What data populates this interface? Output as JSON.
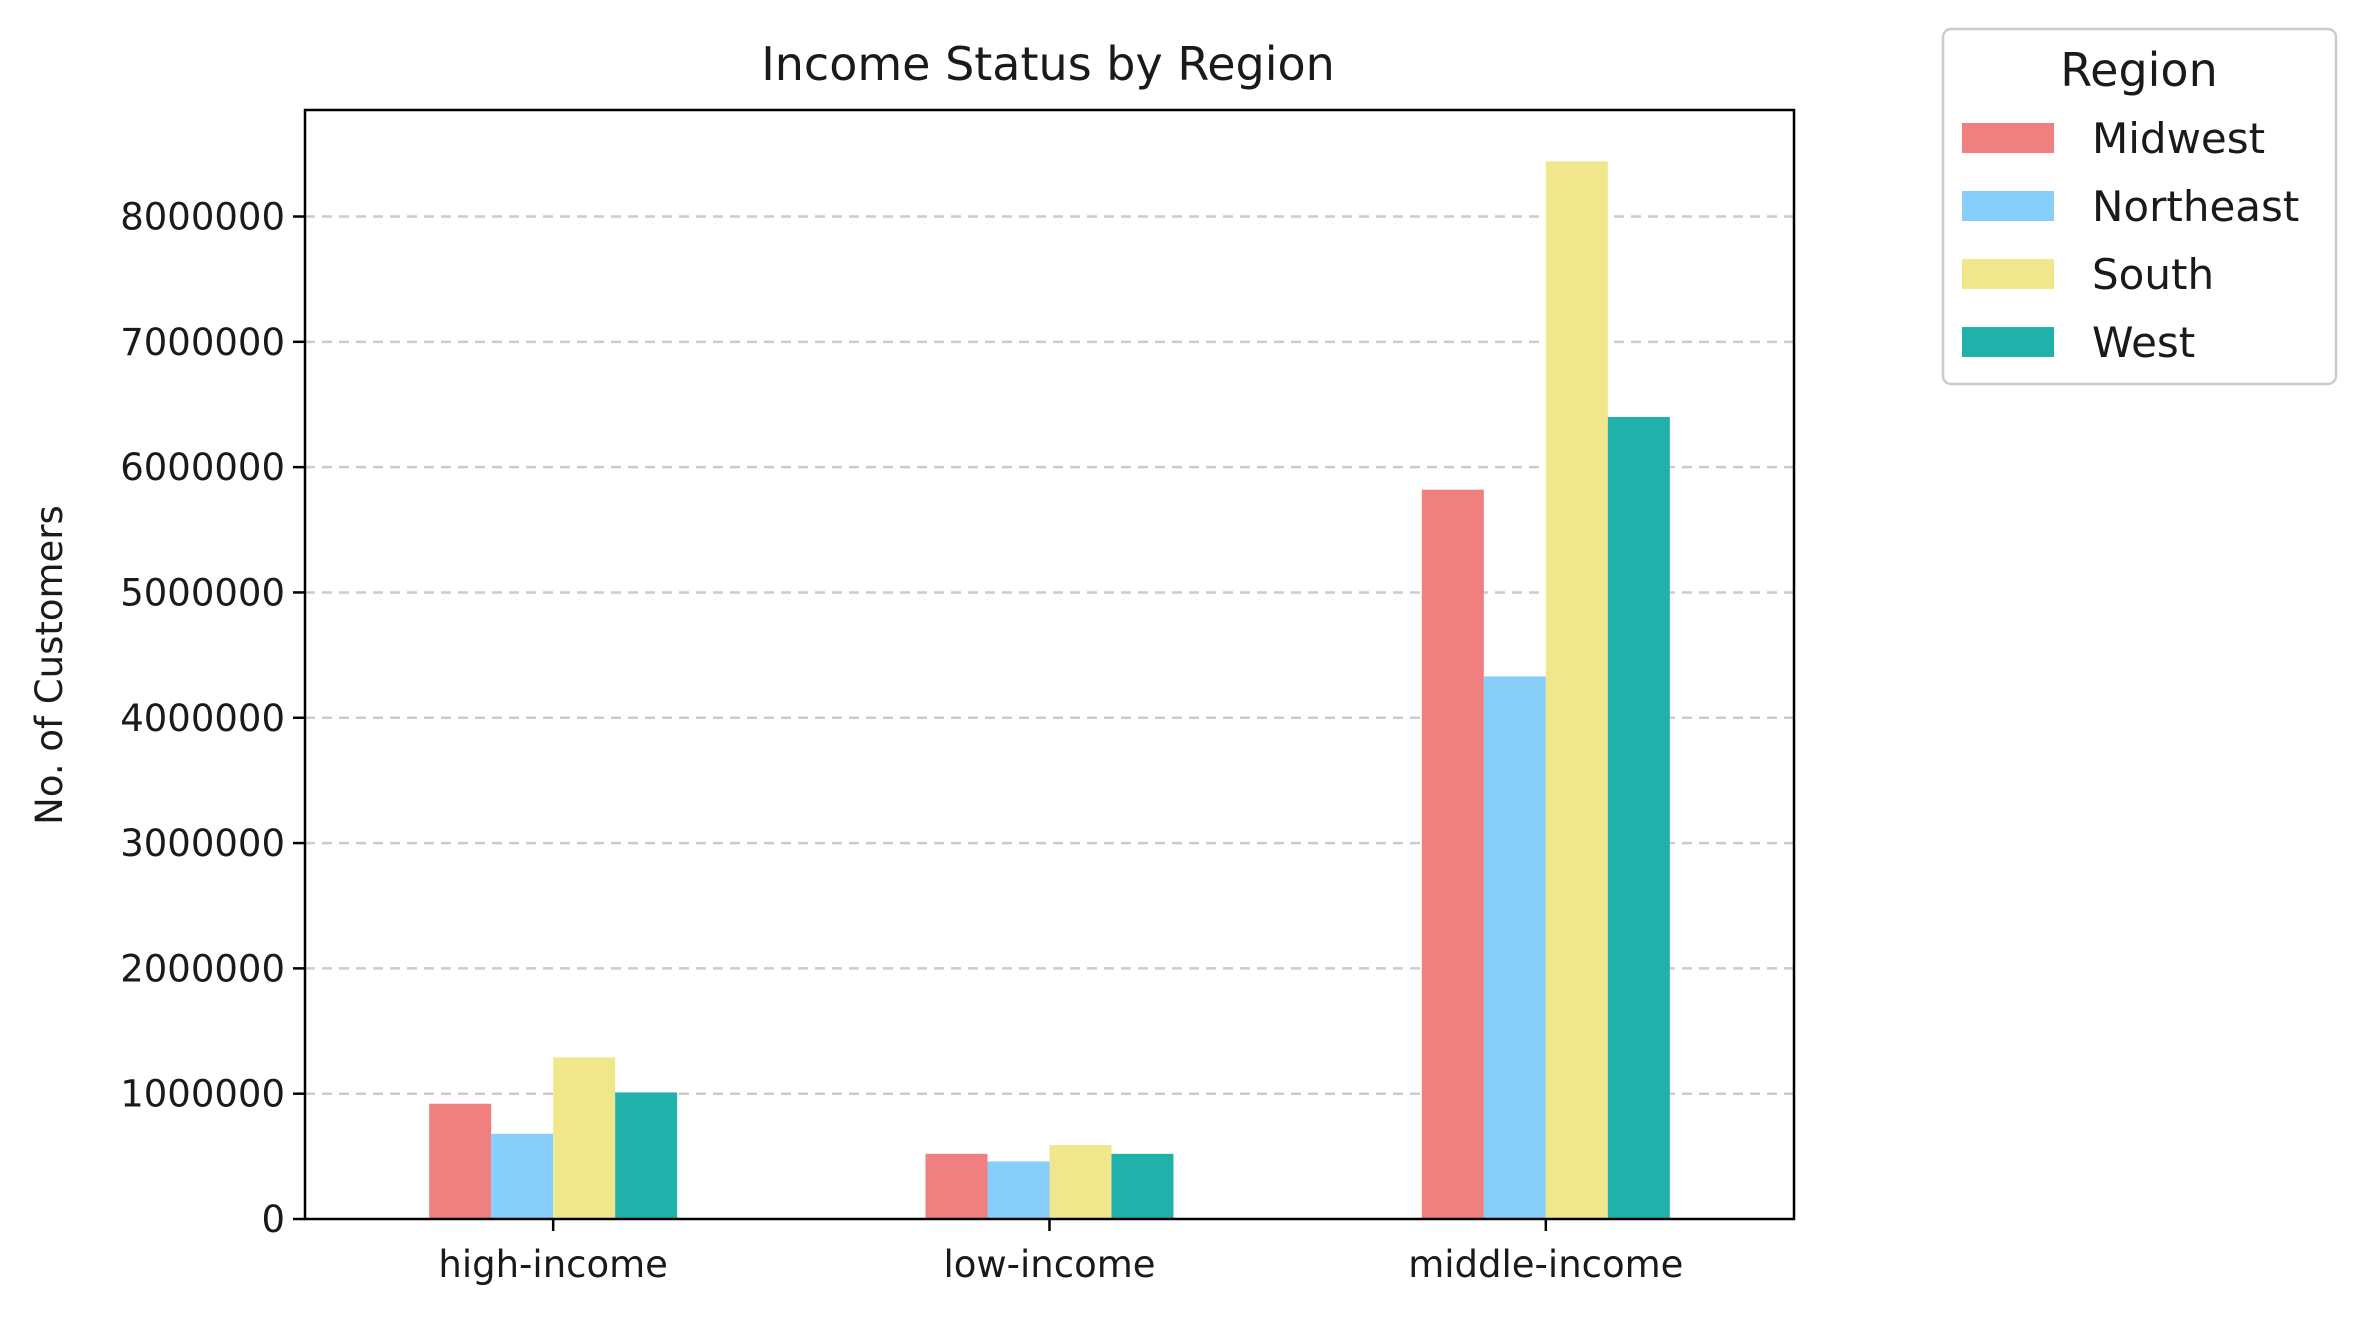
{
  "chart_data": {
    "type": "bar",
    "title": "Income Status by Region",
    "xlabel": "",
    "ylabel": "No. of Customers",
    "categories": [
      "high-income",
      "low-income",
      "middle-income"
    ],
    "series": [
      {
        "name": "Midwest",
        "color": "#F08080",
        "values": [
          920000,
          520000,
          5820000
        ]
      },
      {
        "name": "Northeast",
        "color": "#87CEFA",
        "values": [
          680000,
          460000,
          4330000
        ]
      },
      {
        "name": "South",
        "color": "#F0E68C",
        "values": [
          1290000,
          590000,
          8440000
        ]
      },
      {
        "name": "West",
        "color": "#20B2AA",
        "values": [
          1010000,
          520000,
          6400000
        ]
      }
    ],
    "ylim": [
      0,
      8850000
    ],
    "yticks": [
      0,
      1000000,
      2000000,
      3000000,
      4000000,
      5000000,
      6000000,
      7000000,
      8000000
    ],
    "ytick_labels": [
      "0",
      "1000000",
      "2000000",
      "3000000",
      "4000000",
      "5000000",
      "6000000",
      "7000000",
      "8000000"
    ],
    "grid": "y-dashed",
    "legend": {
      "title": "Region",
      "placement": "outside-top-right"
    }
  }
}
